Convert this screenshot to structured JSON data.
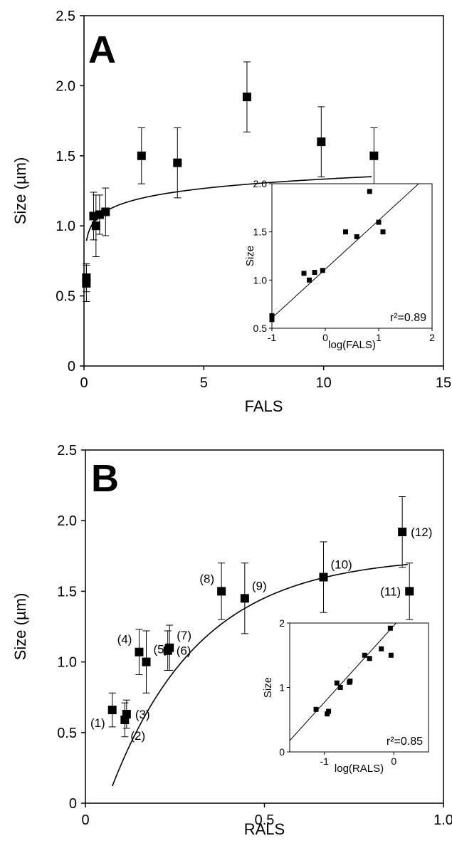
{
  "chart_data": [
    {
      "panel": "A",
      "type": "scatter",
      "xlabel": "FALS",
      "ylabel": "Size (µm)",
      "xlim": [
        0,
        15
      ],
      "ylim": [
        0,
        2.5
      ],
      "xticks": [
        "0",
        "5",
        "10",
        "15"
      ],
      "yticks": [
        "0",
        "0.5",
        "1.0",
        "1.5",
        "2.0",
        "2.5"
      ],
      "points": [
        {
          "x": 0.1,
          "y": 0.63,
          "err": 0.1
        },
        {
          "x": 0.1,
          "y": 0.59,
          "err": 0.13
        },
        {
          "x": 0.4,
          "y": 1.07,
          "err": 0.17
        },
        {
          "x": 0.5,
          "y": 1.0,
          "err": 0.22
        },
        {
          "x": 0.65,
          "y": 1.08,
          "err": 0.14
        },
        {
          "x": 0.9,
          "y": 1.1,
          "err": 0.17
        },
        {
          "x": 2.4,
          "y": 1.5,
          "err": 0.2
        },
        {
          "x": 3.9,
          "y": 1.45,
          "err": 0.25
        },
        {
          "x": 6.8,
          "y": 1.92,
          "err": 0.25
        },
        {
          "x": 9.9,
          "y": 1.6,
          "err": 0.25
        },
        {
          "x": 12.1,
          "y": 1.5,
          "err": 0.2
        }
      ],
      "fit": {
        "kind": "logarithmic",
        "a": 1.1133,
        "b": 0.2203,
        "xmin": 0.1,
        "xmax": 12.0
      },
      "inset": {
        "xlabel": "log(FALS)",
        "ylabel": "Size",
        "xlim": [
          -1,
          2
        ],
        "ylim": [
          0.5,
          2.0
        ],
        "xticks": [
          "-1",
          "0",
          "1",
          "2"
        ],
        "yticks": [
          "0.5",
          "1.0",
          "1.5",
          "2.0"
        ],
        "points": [
          {
            "x": -1.0,
            "y": 0.63
          },
          {
            "x": -1.0,
            "y": 0.59
          },
          {
            "x": -0.4,
            "y": 1.07
          },
          {
            "x": -0.3,
            "y": 1.0
          },
          {
            "x": -0.2,
            "y": 1.08
          },
          {
            "x": -0.05,
            "y": 1.1
          },
          {
            "x": 0.38,
            "y": 1.5
          },
          {
            "x": 0.59,
            "y": 1.45
          },
          {
            "x": 0.83,
            "y": 1.92
          },
          {
            "x": 1.0,
            "y": 1.6
          },
          {
            "x": 1.08,
            "y": 1.5
          }
        ],
        "line": {
          "slope": 0.507,
          "intercept": 1.113
        },
        "annotation": "r²=0.89"
      }
    },
    {
      "panel": "B",
      "type": "scatter",
      "xlabel": "RALS",
      "ylabel": "Size (µm)",
      "xlim": [
        0,
        1.0
      ],
      "ylim": [
        0,
        2.5
      ],
      "xticks": [
        "0",
        "0.5",
        "1.0"
      ],
      "yticks": [
        "0",
        "0.5",
        "1.0",
        "1.5",
        "2.0",
        "2.5"
      ],
      "points": [
        {
          "x": 0.075,
          "y": 0.66,
          "err": 0.12,
          "label": "(1)",
          "lpos": "left-below"
        },
        {
          "x": 0.11,
          "y": 0.59,
          "err": 0.12,
          "label": "(2)",
          "lpos": "right-below"
        },
        {
          "x": 0.115,
          "y": 0.63,
          "err": 0.1,
          "label": "(3)",
          "lpos": "right"
        },
        {
          "x": 0.15,
          "y": 1.07,
          "err": 0.16,
          "label": "(4)",
          "lpos": "left-above"
        },
        {
          "x": 0.17,
          "y": 1.0,
          "err": 0.22,
          "label": "(5)",
          "lpos": "right-above"
        },
        {
          "x": 0.23,
          "y": 1.08,
          "err": 0.14,
          "label": "(6)",
          "lpos": "right"
        },
        {
          "x": 0.235,
          "y": 1.1,
          "err": 0.16,
          "label": "(7)",
          "lpos": "right-above"
        },
        {
          "x": 0.38,
          "y": 1.5,
          "err": 0.2,
          "label": "(8)",
          "lpos": "left-above"
        },
        {
          "x": 0.445,
          "y": 1.45,
          "err": 0.25,
          "label": "(9)",
          "lpos": "right-above"
        },
        {
          "x": 0.665,
          "y": 1.6,
          "err": 0.25,
          "label": "(10)",
          "lpos": "right-above"
        },
        {
          "x": 0.905,
          "y": 1.5,
          "err": 0.2,
          "label": "(11)",
          "lpos": "left"
        },
        {
          "x": 0.885,
          "y": 1.92,
          "err": 0.25,
          "label": "(12)",
          "lpos": "right"
        }
      ],
      "fit": {
        "kind": "exponential-rise",
        "A": 1.75,
        "B": 2.2,
        "k": 4.0,
        "xmin": 0.075,
        "xmax": 0.9
      },
      "inset": {
        "xlabel": "log(RALS)",
        "ylabel": "Size",
        "xlim": [
          -1.5,
          0.5
        ],
        "ylim": [
          0,
          2
        ],
        "xticks": [
          "-1",
          "0"
        ],
        "xtickvals": [
          -1,
          0
        ],
        "yticks": [
          "0",
          "1",
          "2"
        ],
        "points": [
          {
            "x": -1.12,
            "y": 0.66
          },
          {
            "x": -0.96,
            "y": 0.59
          },
          {
            "x": -0.94,
            "y": 0.63
          },
          {
            "x": -0.82,
            "y": 1.07
          },
          {
            "x": -0.77,
            "y": 1.0
          },
          {
            "x": -0.64,
            "y": 1.08
          },
          {
            "x": -0.63,
            "y": 1.1
          },
          {
            "x": -0.42,
            "y": 1.5
          },
          {
            "x": -0.35,
            "y": 1.45
          },
          {
            "x": -0.18,
            "y": 1.6
          },
          {
            "x": -0.04,
            "y": 1.5
          },
          {
            "x": -0.05,
            "y": 1.92
          }
        ],
        "line": {
          "slope": 1.19,
          "intercept": 1.96
        },
        "annotation": "r²=0.85"
      }
    }
  ]
}
